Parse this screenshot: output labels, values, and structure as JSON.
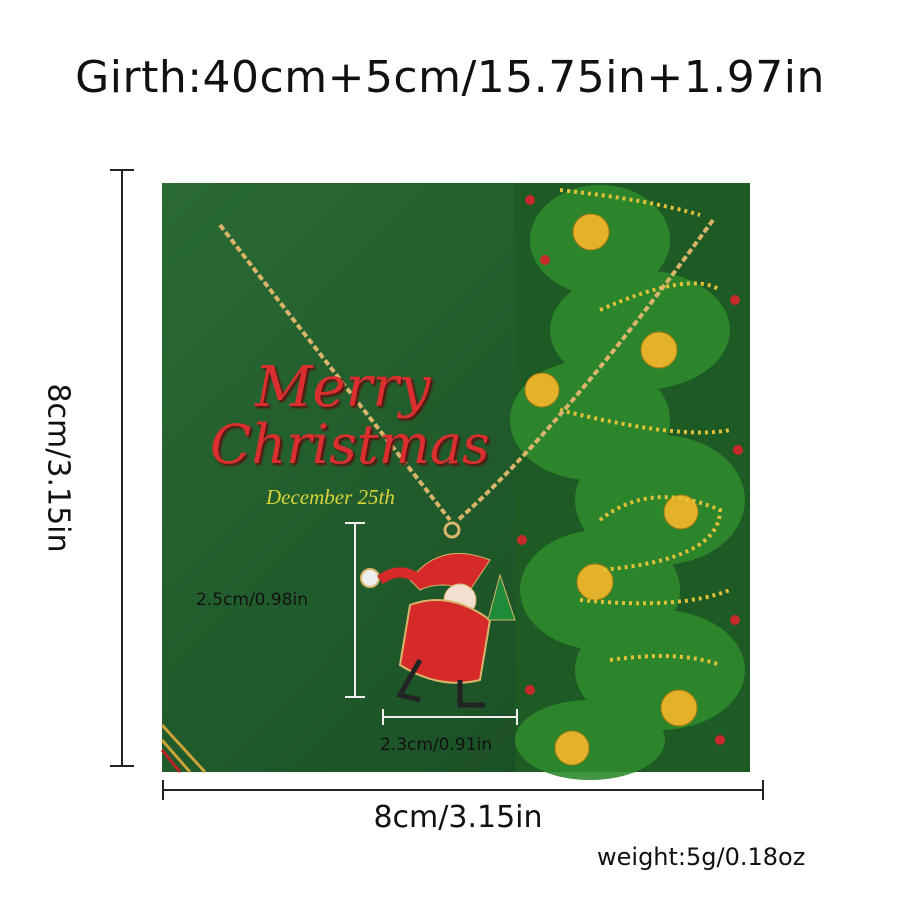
{
  "header": {
    "girth": "Girth:40cm+5cm/15.75in+1.97in"
  },
  "card": {
    "line1": "Merry",
    "line2": "Christmas",
    "date": "December 25th",
    "colors": {
      "background": "#1f5a2c",
      "text": "#d92f2f",
      "date": "#d6d63a"
    }
  },
  "dimensions": {
    "card_height": "8cm/3.15in",
    "card_width": "8cm/3.15in",
    "pendant_height": "2.5cm/0.98in",
    "pendant_width": "2.3cm/0.91in",
    "weight": "weight:5g/0.18oz"
  }
}
